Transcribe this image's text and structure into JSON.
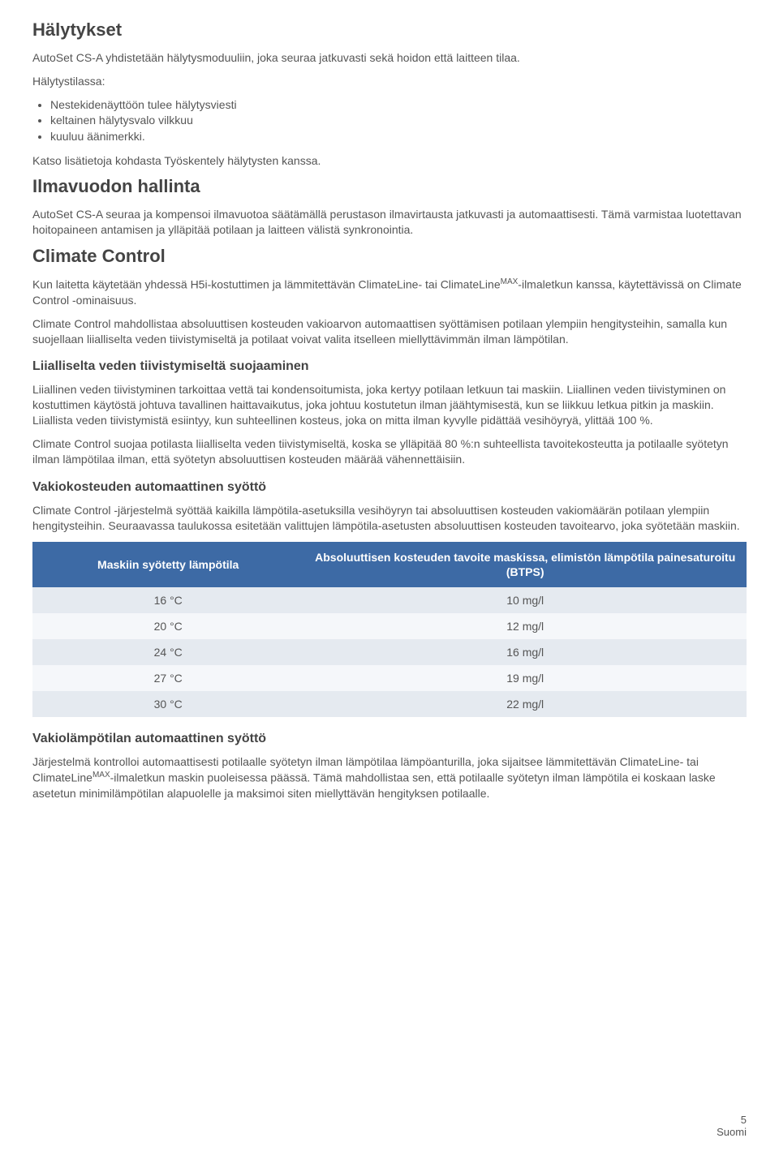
{
  "sections": {
    "alerts": {
      "title": "Hälytykset",
      "p1": "AutoSet CS-A yhdistetään hälytysmoduuliin, joka seuraa jatkuvasti sekä hoidon että laitteen tilaa.",
      "p2_intro": "Hälytystilassa:",
      "bullets": [
        "Nestekidenäyttöön tulee hälytysviesti",
        "keltainen hälytysvalo vilkkuu",
        "kuuluu äänimerkki."
      ],
      "p3": "Katso lisätietoja kohdasta Työskentely hälytysten kanssa."
    },
    "leak": {
      "title": "Ilmavuodon hallinta",
      "p1": "AutoSet CS-A seuraa ja kompensoi ilmavuotoa säätämällä perustason ilmavirtausta jatkuvasti ja automaattisesti. Tämä varmistaa luotettavan hoitopaineen antamisen ja ylläpitää potilaan ja laitteen välistä synkronointia."
    },
    "climate": {
      "title": "Climate Control",
      "p1a": "Kun laitetta käytetään yhdessä H5i-kostuttimen ja lämmitettävän ClimateLine- tai ClimateLine",
      "sup": "MAX",
      "p1b": "-ilmaletkun kanssa, käytettävissä on Climate Control -ominaisuus.",
      "p2": "Climate Control mahdollistaa absoluuttisen kosteuden vakioarvon automaattisen syöttämisen potilaan ylempiin hengitysteihin, samalla kun suojellaan liialliselta veden tiivistymiseltä ja potilaat voivat valita itselleen miellyttävimmän ilman lämpötilan.",
      "rainout": {
        "title": "Liialliselta veden tiivistymiseltä suojaaminen",
        "p1": "Liiallinen veden tiivistyminen tarkoittaa vettä tai kondensoitumista, joka kertyy potilaan letkuun tai maskiin. Liiallinen veden tiivistyminen on kostuttimen käytöstä johtuva tavallinen haittavaikutus, joka johtuu kostutetun ilman jäähtymisestä, kun se liikkuu letkua pitkin ja maskiin. Liiallista veden tiivistymistä esiintyy, kun suhteellinen kosteus, joka on mitta ilman kyvylle pidättää vesihöyryä, ylittää 100 %.",
        "p2": "Climate Control suojaa potilasta liialliselta veden tiivistymiseltä, koska se ylläpitää 80 %:n suhteellista tavoitekosteutta ja potilaalle syötetyn ilman lämpötilaa ilman, että syötetyn absoluuttisen kosteuden määrää vähennettäisiin."
      },
      "humidity": {
        "title": "Vakiokosteuden automaattinen syöttö",
        "p1": "Climate Control -järjestelmä syöttää kaikilla lämpötila-asetuksilla vesihöyryn tai absoluuttisen kosteuden vakiomäärän potilaan ylempiin hengitysteihin. Seuraavassa taulukossa esitetään valittujen lämpötila-asetusten absoluuttisen kosteuden tavoitearvo, joka syötetään maskiin.",
        "table": {
          "columns": [
            "Maskiin syötetty lämpötila",
            "Absoluuttisen kosteuden tavoite maskissa, elimistön lämpötila painesaturoitu (BTPS)"
          ],
          "rows": [
            [
              "16 °C",
              "10 mg/l"
            ],
            [
              "20 °C",
              "12 mg/l"
            ],
            [
              "24 °C",
              "16 mg/l"
            ],
            [
              "27 °C",
              "19 mg/l"
            ],
            [
              "30 °C",
              "22 mg/l"
            ]
          ],
          "header_bg": "#3d6aa5",
          "header_fg": "#ffffff",
          "row_odd_bg": "#e5eaf0",
          "row_even_bg": "#f5f7fa"
        }
      },
      "temperature": {
        "title": "Vakiolämpötilan automaattinen syöttö",
        "p1a": "Järjestelmä kontrolloi automaattisesti potilaalle syötetyn ilman lämpötilaa lämpöanturilla, joka sijaitsee lämmitettävän ClimateLine- tai ClimateLine",
        "sup": "MAX",
        "p1b": "-ilmaletkun maskin puoleisessa päässä. Tämä mahdollistaa sen, että potilaalle syötetyn ilman lämpötila ei koskaan laske asetetun minimilämpötilan alapuolelle ja maksimoi siten miellyttävän hengityksen potilaalle."
      }
    }
  },
  "footer": {
    "page_number": "5",
    "language": "Suomi"
  }
}
